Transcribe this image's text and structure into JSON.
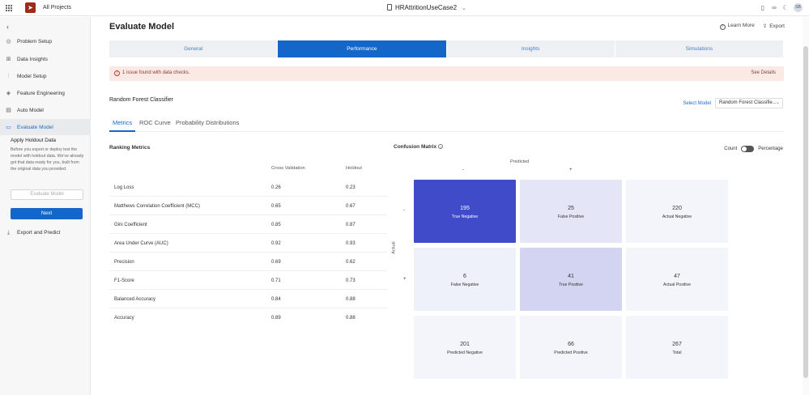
{
  "topbar": {
    "all_projects": "All Projects",
    "project_name": "HRAttritionUseCase2",
    "avatar_initials": "SB"
  },
  "sidebar": {
    "items": [
      {
        "label": "Problem Setup",
        "icon": "target-icon"
      },
      {
        "label": "Data Insights",
        "icon": "grid-icon"
      },
      {
        "label": "Model Setup",
        "icon": "sliders-icon"
      },
      {
        "label": "Feature Engineering",
        "icon": "layers-icon"
      },
      {
        "label": "Auto Model",
        "icon": "document-icon"
      },
      {
        "label": "Evaluate Model",
        "icon": "chart-icon",
        "active": true
      }
    ],
    "holdout_title": "Apply Holdout Data",
    "holdout_desc": "Before you export or deploy test the model with holdout data. We've already got that data ready for you, built from the original data you provided.",
    "evaluate_button": "Evaluate Model",
    "next_button": "Next",
    "export_predict": "Export and Predict"
  },
  "header": {
    "title": "Evaluate Model",
    "learn_more": "Learn More",
    "export": "Export"
  },
  "tabs": [
    "General",
    "Performance",
    "Insights",
    "Simulations"
  ],
  "issue": {
    "message": "1 issue found with data checks.",
    "link": "See Details"
  },
  "model": {
    "name": "Random Forest Classifier",
    "select_label": "Select Model",
    "select_value": "Random Forest Classifie..."
  },
  "subtabs": [
    "Metrics",
    "ROC Curve",
    "Probability Distributions"
  ],
  "ranking": {
    "title": "Ranking Metrics",
    "col_cv": "Cross Validation",
    "col_holdout": "Holdout",
    "rows": [
      {
        "name": "Log Loss",
        "cv": "0.26",
        "holdout": "0.23"
      },
      {
        "name": "Matthews Correlation Coefficient (MCC)",
        "cv": "0.65",
        "holdout": "0.67"
      },
      {
        "name": "Gini Coefficient",
        "cv": "0.85",
        "holdout": "0.87"
      },
      {
        "name": "Area Under Curve (AUC)",
        "cv": "0.92",
        "holdout": "0.93"
      },
      {
        "name": "Precision",
        "cv": "0.69",
        "holdout": "0.62"
      },
      {
        "name": "F1-Score",
        "cv": "0.71",
        "holdout": "0.73"
      },
      {
        "name": "Balanced Accuracy",
        "cv": "0.84",
        "holdout": "0.88"
      },
      {
        "name": "Accuracy",
        "cv": "0.89",
        "holdout": "0.88"
      }
    ]
  },
  "confusion": {
    "title": "Confusion Matrix",
    "toggle_count": "Count",
    "toggle_percentage": "Percentage",
    "predicted": "Predicted",
    "actual": "Actual",
    "neg_sign": "-",
    "pos_sign": "+",
    "cells": [
      {
        "value": "195",
        "label": "True Negative",
        "bg": "#3f4bc9",
        "fg": "#ffffff"
      },
      {
        "value": "25",
        "label": "False Positive",
        "bg": "#e4e6f8",
        "fg": "#333333"
      },
      {
        "value": "220",
        "label": "Actual Negative",
        "bg": "#f4f5fb",
        "fg": "#333333"
      },
      {
        "value": "6",
        "label": "False Negative",
        "bg": "#eef0fa",
        "fg": "#333333"
      },
      {
        "value": "41",
        "label": "True Positive",
        "bg": "#d2d4f2",
        "fg": "#333333"
      },
      {
        "value": "47",
        "label": "Actual Positive",
        "bg": "#f4f5fb",
        "fg": "#333333"
      },
      {
        "value": "201",
        "label": "Predicted Negative",
        "bg": "#f4f5fb",
        "fg": "#333333"
      },
      {
        "value": "66",
        "label": "Predicted Positive",
        "bg": "#f4f5fb",
        "fg": "#333333"
      },
      {
        "value": "267",
        "label": "Total",
        "bg": "#f4f5fb",
        "fg": "#333333"
      }
    ]
  }
}
